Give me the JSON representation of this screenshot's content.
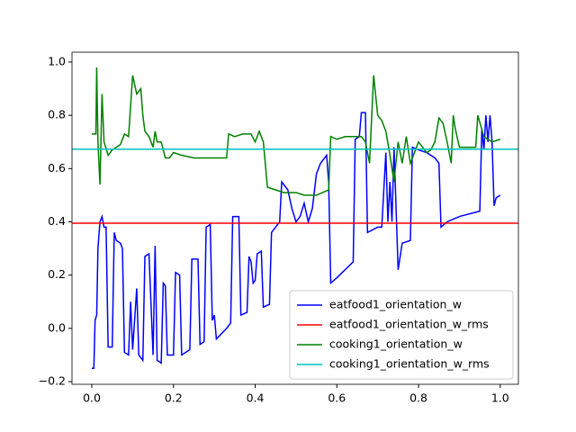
{
  "chart_data": {
    "type": "line",
    "xlim": [
      -0.0485,
      1.0445
    ],
    "ylim": [
      -0.21,
      1.037
    ],
    "xticks": [
      {
        "value": 0,
        "label": "0.0"
      },
      0.2,
      0.4,
      0.6,
      0.8,
      {
        "value": 1,
        "label": "1.0"
      }
    ],
    "yticks": [
      {
        "value": -0.2,
        "label": "−0.2"
      },
      {
        "value": 0,
        "label": "0.0"
      },
      0.2,
      0.4,
      0.6,
      0.8,
      {
        "value": 1,
        "label": "1.0"
      }
    ],
    "legend": "lower right",
    "series": [
      {
        "name": "eatfood1_orientation_w",
        "color": "#0000ff",
        "x": [
          0.0,
          0.005,
          0.008,
          0.012,
          0.015,
          0.02,
          0.025,
          0.03,
          0.035,
          0.04,
          0.05,
          0.055,
          0.06,
          0.07,
          0.075,
          0.08,
          0.09,
          0.095,
          0.1,
          0.11,
          0.115,
          0.125,
          0.13,
          0.14,
          0.15,
          0.155,
          0.16,
          0.17,
          0.175,
          0.18,
          0.185,
          0.2,
          0.205,
          0.215,
          0.22,
          0.24,
          0.245,
          0.26,
          0.265,
          0.275,
          0.28,
          0.29,
          0.295,
          0.3,
          0.305,
          0.33,
          0.34,
          0.345,
          0.36,
          0.365,
          0.38,
          0.385,
          0.39,
          0.395,
          0.4,
          0.405,
          0.415,
          0.42,
          0.435,
          0.44,
          0.46,
          0.465,
          0.48,
          0.49,
          0.5,
          0.51,
          0.52,
          0.53,
          0.54,
          0.55,
          0.56,
          0.575,
          0.58,
          0.585,
          0.6,
          0.62,
          0.64,
          0.645,
          0.655,
          0.66,
          0.67,
          0.675,
          0.7,
          0.71,
          0.72,
          0.725,
          0.73,
          0.735,
          0.74,
          0.75,
          0.76,
          0.78,
          0.785,
          0.8,
          0.82,
          0.84,
          0.85,
          0.855,
          0.87,
          0.9,
          0.95,
          0.955,
          0.96,
          0.965,
          0.97,
          0.975,
          0.98,
          0.985,
          0.99,
          1.0
        ],
        "values": [
          -0.15,
          -0.15,
          0.03,
          0.05,
          0.3,
          0.4,
          0.42,
          0.38,
          0.38,
          -0.07,
          -0.07,
          0.36,
          0.33,
          0.32,
          0.3,
          -0.09,
          -0.1,
          0.1,
          -0.08,
          0.15,
          -0.1,
          -0.12,
          0.27,
          0.28,
          -0.1,
          0.31,
          -0.12,
          -0.13,
          0.17,
          0.16,
          -0.1,
          -0.1,
          0.21,
          0.2,
          -0.1,
          -0.08,
          0.26,
          0.26,
          -0.06,
          -0.05,
          0.38,
          0.39,
          0.03,
          0.05,
          -0.04,
          0.0,
          0.02,
          0.42,
          0.42,
          0.05,
          0.06,
          0.27,
          0.25,
          0.17,
          0.18,
          0.28,
          0.29,
          0.08,
          0.09,
          0.36,
          0.4,
          0.55,
          0.52,
          0.45,
          0.4,
          0.42,
          0.47,
          0.4,
          0.45,
          0.58,
          0.62,
          0.65,
          0.55,
          0.17,
          0.19,
          0.22,
          0.25,
          0.71,
          0.72,
          0.81,
          0.81,
          0.36,
          0.38,
          0.38,
          0.66,
          0.4,
          0.55,
          0.4,
          0.68,
          0.22,
          0.32,
          0.33,
          0.68,
          0.67,
          0.66,
          0.64,
          0.62,
          0.38,
          0.4,
          0.42,
          0.44,
          0.75,
          0.67,
          0.8,
          0.7,
          0.8,
          0.7,
          0.46,
          0.49,
          0.5
        ]
      },
      {
        "name": "eatfood1_orientation_w_rms",
        "color": "#ff0000",
        "values": [
          0.395
        ]
      },
      {
        "name": "cooking1_orientation_w",
        "color": "#008000",
        "x": [
          0.0,
          0.01,
          0.012,
          0.015,
          0.02,
          0.025,
          0.03,
          0.04,
          0.05,
          0.07,
          0.08,
          0.09,
          0.1,
          0.11,
          0.12,
          0.125,
          0.13,
          0.14,
          0.15,
          0.155,
          0.16,
          0.17,
          0.18,
          0.19,
          0.2,
          0.22,
          0.25,
          0.28,
          0.33,
          0.335,
          0.35,
          0.37,
          0.39,
          0.4,
          0.41,
          0.42,
          0.43,
          0.45,
          0.47,
          0.5,
          0.52,
          0.55,
          0.58,
          0.585,
          0.6,
          0.62,
          0.64,
          0.66,
          0.67,
          0.68,
          0.69,
          0.7,
          0.71,
          0.72,
          0.73,
          0.74,
          0.75,
          0.76,
          0.77,
          0.78,
          0.79,
          0.8,
          0.82,
          0.83,
          0.84,
          0.85,
          0.86,
          0.87,
          0.88,
          0.885,
          0.89,
          0.9,
          0.92,
          0.94,
          0.945,
          0.96,
          0.98,
          1.0
        ],
        "values": [
          0.73,
          0.73,
          0.98,
          0.7,
          0.54,
          0.88,
          0.7,
          0.65,
          0.67,
          0.69,
          0.73,
          0.72,
          0.95,
          0.88,
          0.9,
          0.8,
          0.74,
          0.72,
          0.68,
          0.74,
          0.7,
          0.7,
          0.64,
          0.64,
          0.66,
          0.65,
          0.64,
          0.64,
          0.64,
          0.73,
          0.72,
          0.73,
          0.73,
          0.7,
          0.74,
          0.7,
          0.53,
          0.52,
          0.51,
          0.51,
          0.5,
          0.5,
          0.52,
          0.72,
          0.71,
          0.72,
          0.72,
          0.72,
          0.7,
          0.62,
          0.95,
          0.8,
          0.78,
          0.74,
          0.65,
          0.55,
          0.7,
          0.62,
          0.72,
          0.62,
          0.66,
          0.7,
          0.66,
          0.67,
          0.7,
          0.79,
          0.77,
          0.7,
          0.62,
          0.8,
          0.75,
          0.68,
          0.68,
          0.68,
          0.8,
          0.72,
          0.7,
          0.71
        ]
      },
      {
        "name": "cooking1_orientation_w_rms",
        "color": "#00bfbf",
        "values": [
          0.673
        ]
      }
    ]
  }
}
